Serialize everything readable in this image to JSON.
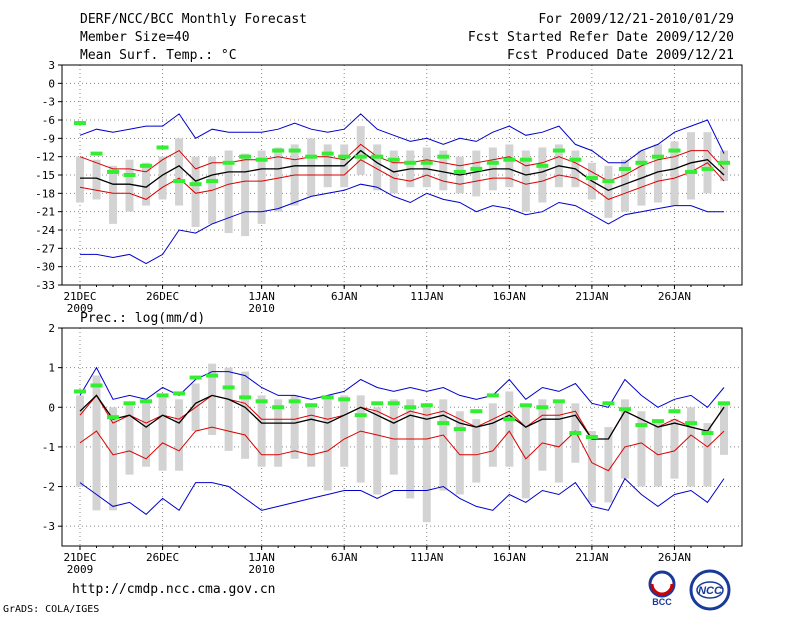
{
  "header": {
    "title": "DERF/NCC/BCC Monthly Forecast",
    "member_size": "Member Size=40",
    "variable": "Mean Surf. Temp.: °C",
    "period": "For 2009/12/21-2010/01/29",
    "start_date": "Fcst Started Refer Date 2009/12/20",
    "produced_date": "Fcst Produced Date 2009/12/21"
  },
  "footer": {
    "url": "http://cmdp.ncc.cma.gov.cn",
    "credit": "GrADS: COLA/IGES",
    "logo_left_text": "BCC",
    "logo_right_text": "NCC"
  },
  "colors": {
    "ensemble_max_min": "#0000cc",
    "ensemble_mean": "#000000",
    "percentile_bounds": "#dd0000",
    "member_spread_bar": "#d3d3d3",
    "observation_marker": "#33ee33",
    "grid": "#888888"
  },
  "chart_data": [
    {
      "type": "line",
      "title": "Mean Surf. Temp.: °C",
      "ylim": [
        -33,
        3
      ],
      "yticks": [
        3,
        0,
        -3,
        -6,
        -9,
        -12,
        -15,
        -18,
        -21,
        -24,
        -27,
        -30,
        -33
      ],
      "xlim": [
        0,
        39
      ],
      "x_ticks": [
        {
          "day": 0,
          "label": "21DEC",
          "sub": "2009"
        },
        {
          "day": 5,
          "label": "26DEC",
          "sub": ""
        },
        {
          "day": 11,
          "label": "1JAN",
          "sub": "2010"
        },
        {
          "day": 16,
          "label": "6JAN",
          "sub": ""
        },
        {
          "day": 21,
          "label": "11JAN",
          "sub": ""
        },
        {
          "day": 26,
          "label": "16JAN",
          "sub": ""
        },
        {
          "day": 31,
          "label": "21JAN",
          "sub": ""
        },
        {
          "day": 36,
          "label": "26JAN",
          "sub": ""
        }
      ],
      "series": [
        {
          "name": "ensemble max",
          "color": "#0000cc",
          "values": [
            -8.5,
            -7.5,
            -8,
            -7.5,
            -7,
            -7,
            -5,
            -9,
            -7.5,
            -8,
            -8,
            -8,
            -7.5,
            -6.5,
            -7.5,
            -8,
            -7.5,
            -5,
            -7.5,
            -8.5,
            -9.5,
            -9,
            -10,
            -9,
            -9.5,
            -8,
            -7,
            -8.5,
            -8,
            -7,
            -10,
            -11,
            -13,
            -13,
            -11,
            -10,
            -8,
            -7,
            -6,
            -11.5
          ]
        },
        {
          "name": "ensemble min",
          "color": "#0000cc",
          "values": [
            -28,
            -28,
            -28.5,
            -28,
            -29.5,
            -28,
            -24,
            -24.5,
            -23,
            -22,
            -21,
            -21,
            -20.5,
            -19.5,
            -18.5,
            -18,
            -17.5,
            -16.5,
            -17,
            -18.5,
            -19.5,
            -18,
            -19,
            -19.5,
            -21,
            -20,
            -20.5,
            -21.5,
            -21,
            -19.5,
            -20,
            -21.5,
            -23,
            -21.5,
            -21,
            -20.5,
            -20,
            -20,
            -21,
            -21
          ]
        },
        {
          "name": "upper bound",
          "color": "#dd0000",
          "values": [
            -12,
            -13,
            -14,
            -14,
            -14.5,
            -12.5,
            -11,
            -14,
            -13,
            -13,
            -12.5,
            -12.5,
            -12,
            -12.5,
            -12,
            -12,
            -12.5,
            -10,
            -12,
            -13,
            -13,
            -12.5,
            -13,
            -13.5,
            -13,
            -12.5,
            -12,
            -13.5,
            -13,
            -12,
            -13,
            -14.5,
            -16,
            -15,
            -13.5,
            -12.5,
            -12,
            -11,
            -11,
            -14
          ]
        },
        {
          "name": "lower bound",
          "color": "#dd0000",
          "values": [
            -17,
            -17.5,
            -18,
            -18,
            -19,
            -17,
            -15.5,
            -18,
            -17.5,
            -16.5,
            -16,
            -16,
            -15.5,
            -15,
            -15,
            -15,
            -15,
            -12.5,
            -14,
            -15.5,
            -16,
            -15,
            -16,
            -16.5,
            -16,
            -15.5,
            -15.5,
            -16.5,
            -16,
            -15,
            -15.5,
            -17,
            -19,
            -18,
            -17,
            -16,
            -15.5,
            -14.5,
            -13,
            -16
          ]
        },
        {
          "name": "ensemble mean",
          "color": "#000000",
          "values": [
            -15.5,
            -15.5,
            -16.5,
            -16.5,
            -17,
            -15,
            -13.5,
            -16,
            -15,
            -14.5,
            -14.5,
            -14,
            -14,
            -13.5,
            -13.5,
            -13.5,
            -13.5,
            -11,
            -13,
            -14.5,
            -14,
            -14,
            -14.5,
            -15,
            -14.5,
            -14,
            -14,
            -15,
            -14.5,
            -13.5,
            -14,
            -16,
            -17.5,
            -16.5,
            -15.5,
            -14.5,
            -14,
            -13,
            -12.5,
            -15
          ]
        }
      ],
      "bars": [
        [
          -12,
          -19.5
        ],
        [
          -12.5,
          -19
        ],
        [
          -13.5,
          -23
        ],
        [
          -12.5,
          -21
        ],
        [
          -13,
          -20
        ],
        [
          -12,
          -19
        ],
        [
          -9,
          -20
        ],
        [
          -12,
          -23.5
        ],
        [
          -12,
          -23
        ],
        [
          -11,
          -24.5
        ],
        [
          -11.5,
          -25
        ],
        [
          -11,
          -23
        ],
        [
          -10.5,
          -21
        ],
        [
          -10,
          -20
        ],
        [
          -9,
          -18.5
        ],
        [
          -10,
          -17
        ],
        [
          -10,
          -17
        ],
        [
          -7,
          -15
        ],
        [
          -10,
          -17.5
        ],
        [
          -11,
          -18
        ],
        [
          -11,
          -17
        ],
        [
          -10.5,
          -17
        ],
        [
          -11,
          -17.5
        ],
        [
          -12,
          -18
        ],
        [
          -11,
          -18.5
        ],
        [
          -10.5,
          -17.5
        ],
        [
          -10,
          -17
        ],
        [
          -11,
          -21
        ],
        [
          -10.5,
          -19.5
        ],
        [
          -10,
          -17
        ],
        [
          -11,
          -17
        ],
        [
          -13,
          -19
        ],
        [
          -13.5,
          -22
        ],
        [
          -12.5,
          -21
        ],
        [
          -11,
          -20
        ],
        [
          -10,
          -19.5
        ],
        [
          -9.5,
          -20
        ],
        [
          -8,
          -19
        ],
        [
          -8,
          -18
        ],
        [
          -11,
          -16
        ]
      ],
      "observations": [
        -6.5,
        -11.5,
        -14.5,
        -15,
        -13.5,
        -10.5,
        -16,
        -16.5,
        -16,
        -13,
        -12,
        -12.5,
        -11,
        -11,
        -12,
        -11.5,
        -12,
        -12,
        -12,
        -12.5,
        -13,
        -13,
        -12,
        -14.5,
        -14,
        -13,
        -12.5,
        -12.5,
        -13.5,
        -11,
        -12.5,
        -15.5,
        -16,
        -14,
        -13,
        -12,
        -11,
        -14.5,
        -14,
        -13
      ]
    },
    {
      "type": "line",
      "title": "Prec.: log(mm/d)",
      "ylim": [
        -3.5,
        2
      ],
      "yticks": [
        2,
        1,
        0,
        -1,
        -2,
        -3
      ],
      "xlim": [
        0,
        39
      ],
      "x_ticks": [
        {
          "day": 0,
          "label": "21DEC",
          "sub": "2009"
        },
        {
          "day": 5,
          "label": "26DEC",
          "sub": ""
        },
        {
          "day": 11,
          "label": "1JAN",
          "sub": "2010"
        },
        {
          "day": 16,
          "label": "6JAN",
          "sub": ""
        },
        {
          "day": 21,
          "label": "11JAN",
          "sub": ""
        },
        {
          "day": 26,
          "label": "16JAN",
          "sub": ""
        },
        {
          "day": 31,
          "label": "21JAN",
          "sub": ""
        },
        {
          "day": 36,
          "label": "26JAN",
          "sub": ""
        }
      ],
      "series": [
        {
          "name": "ensemble max",
          "color": "#0000cc",
          "values": [
            0.3,
            1,
            0.2,
            0.3,
            0.2,
            0.5,
            0.3,
            0.7,
            0.9,
            0.9,
            0.8,
            0.5,
            0.3,
            0.3,
            0.2,
            0.3,
            0.4,
            0.7,
            0.5,
            0.4,
            0.5,
            0.4,
            0.5,
            0.3,
            0.2,
            0.3,
            0.7,
            0.2,
            0.5,
            0.4,
            0.6,
            0.1,
            0,
            0.7,
            0.3,
            0,
            0.2,
            0.3,
            0,
            0.5
          ]
        },
        {
          "name": "ensemble min",
          "color": "#0000cc",
          "values": [
            -1.9,
            -2.2,
            -2.5,
            -2.4,
            -2.7,
            -2.3,
            -2.6,
            -1.9,
            -1.9,
            -2,
            -2.3,
            -2.6,
            -2.5,
            -2.4,
            -2.3,
            -2.2,
            -2.1,
            -2.1,
            -2.3,
            -2.1,
            -2.1,
            -2.1,
            -2,
            -2.3,
            -2.5,
            -2.6,
            -2.2,
            -2.4,
            -2.1,
            -2.2,
            -1.9,
            -2.5,
            -2.6,
            -1.8,
            -2.2,
            -2.5,
            -2.2,
            -2.1,
            -2.4,
            -1.8
          ]
        },
        {
          "name": "upper bound",
          "color": "#dd0000",
          "values": [
            -0.2,
            0.3,
            -0.4,
            -0.2,
            -0.4,
            -0.2,
            -0.3,
            0,
            0.3,
            0.2,
            0.1,
            -0.3,
            -0.3,
            -0.3,
            -0.2,
            -0.3,
            -0.2,
            0,
            -0.1,
            -0.3,
            -0.1,
            -0.2,
            -0.1,
            -0.3,
            -0.5,
            -0.3,
            -0.1,
            -0.5,
            -0.2,
            -0.2,
            -0.1,
            -0.8,
            -0.8,
            -0.1,
            -0.3,
            -0.5,
            -0.3,
            -0.5,
            -0.6,
            0
          ]
        },
        {
          "name": "lower bound",
          "color": "#dd0000",
          "values": [
            -0.9,
            -0.6,
            -1.2,
            -1.1,
            -1.3,
            -0.9,
            -1.1,
            -0.6,
            -0.5,
            -0.6,
            -0.7,
            -1.2,
            -1.2,
            -1.1,
            -1.2,
            -1.1,
            -0.8,
            -0.6,
            -0.7,
            -0.8,
            -0.8,
            -0.8,
            -0.7,
            -1.2,
            -1.2,
            -1.1,
            -0.6,
            -1.3,
            -0.9,
            -1,
            -0.6,
            -1.4,
            -1.6,
            -1,
            -0.9,
            -1.2,
            -1.1,
            -0.7,
            -1,
            -0.6
          ]
        },
        {
          "name": "ensemble mean",
          "color": "#000000",
          "values": [
            -0.1,
            0.3,
            -0.3,
            -0.2,
            -0.5,
            -0.2,
            -0.4,
            0.1,
            0.3,
            0.2,
            0,
            -0.4,
            -0.4,
            -0.4,
            -0.3,
            -0.4,
            -0.2,
            0,
            -0.2,
            -0.4,
            -0.2,
            -0.3,
            -0.2,
            -0.4,
            -0.5,
            -0.4,
            -0.2,
            -0.5,
            -0.3,
            -0.3,
            -0.2,
            -0.8,
            -0.8,
            -0.1,
            -0.3,
            -0.5,
            -0.4,
            -0.5,
            -0.6,
            0
          ]
        },
        {
          "name": "upper bound dashed",
          "color": "#dd0000",
          "values": []
        }
      ],
      "bars": [
        [
          0.3,
          -2
        ],
        [
          0.8,
          -2.6
        ],
        [
          0,
          -2.6
        ],
        [
          0.1,
          -1.7
        ],
        [
          0.1,
          -1.5
        ],
        [
          0.3,
          -1.6
        ],
        [
          0.2,
          -1.6
        ],
        [
          0.6,
          -0.6
        ],
        [
          1.1,
          -0.7
        ],
        [
          1,
          -1.1
        ],
        [
          0.9,
          -1.3
        ],
        [
          0.3,
          -1.5
        ],
        [
          0.2,
          -1.5
        ],
        [
          0.3,
          -1.3
        ],
        [
          0.1,
          -1.5
        ],
        [
          0.3,
          -2.1
        ],
        [
          0.3,
          -1.5
        ],
        [
          0.3,
          -1.9
        ],
        [
          0,
          -2.2
        ],
        [
          0.2,
          -1.7
        ],
        [
          0.2,
          -2.3
        ],
        [
          0.1,
          -2.9
        ],
        [
          0.2,
          -2.1
        ],
        [
          -0.1,
          -2.2
        ],
        [
          -0.3,
          -1.9
        ],
        [
          0.1,
          -1.5
        ],
        [
          0.4,
          -1.5
        ],
        [
          0,
          -2.3
        ],
        [
          0.2,
          -1.6
        ],
        [
          0.1,
          -1.9
        ],
        [
          0.1,
          -1.4
        ],
        [
          -0.6,
          -2.4
        ],
        [
          -0.5,
          -2.4
        ],
        [
          0.2,
          -1.8
        ],
        [
          -0.1,
          -2
        ],
        [
          -0.4,
          -2
        ],
        [
          -0.3,
          -1.8
        ],
        [
          0,
          -2
        ],
        [
          -0.4,
          -2
        ],
        [
          0.1,
          -1.2
        ]
      ],
      "observations": [
        0.4,
        0.55,
        -0.25,
        0.1,
        0.15,
        0.3,
        0.35,
        0.75,
        0.8,
        0.5,
        0.25,
        0.15,
        0,
        0.15,
        0.05,
        0.25,
        0.2,
        -0.2,
        0.1,
        0.1,
        0,
        0.05,
        -0.4,
        -0.55,
        -0.1,
        0.3,
        -0.3,
        0.05,
        0,
        0.15,
        -0.65,
        -0.75,
        0.1,
        -0.05,
        -0.45,
        -0.35,
        -0.1,
        -0.4,
        -0.65,
        0.1
      ]
    }
  ]
}
